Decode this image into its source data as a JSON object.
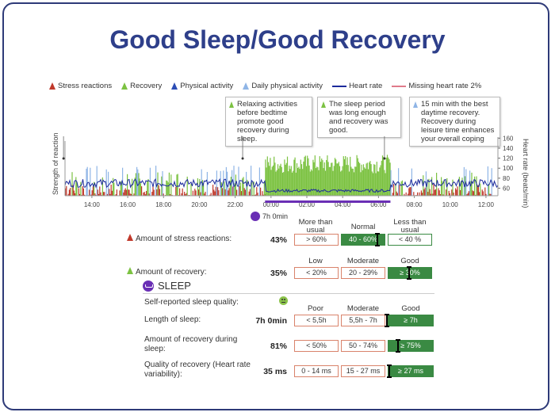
{
  "title": "Good Sleep/Good Recovery",
  "legend": [
    {
      "label": "Stress reactions",
      "kind": "tri",
      "color": "#c0392b"
    },
    {
      "label": "Recovery",
      "kind": "tri",
      "color": "#7cc242"
    },
    {
      "label": "Physical activity",
      "kind": "tri",
      "color": "#2c4db5"
    },
    {
      "label": "Daily physical activity",
      "kind": "tri",
      "color": "#8fb5e6"
    },
    {
      "label": "Heart rate",
      "kind": "line",
      "color": "#1c2a9c"
    },
    {
      "label": "Missing heart rate 2%",
      "kind": "line",
      "color": "#e07a8a"
    }
  ],
  "callouts": [
    {
      "text": "Relaxing activities before bedtime promote good recovery during sleep.",
      "icon": "recovery-icon"
    },
    {
      "text": "The sleep period was long enough and recovery was good.",
      "icon": "recovery-icon"
    },
    {
      "text": "15 min with the best daytime recovery. Recovery during leisure time enhances your overall coping",
      "icon": "daily-activity-icon"
    }
  ],
  "chart_data": {
    "type": "bar",
    "ylabel_left": "Strength of reaction",
    "ylabel_right": "Heart rate (beats/min)",
    "x_ticks": [
      "14:00",
      "16:00",
      "18:00",
      "20:00",
      "22:00",
      "00:00",
      "02:00",
      "04:00",
      "06:00",
      "08:00",
      "10:00",
      "12:00"
    ],
    "hr_ticks": [
      160,
      140,
      120,
      100,
      80,
      60
    ],
    "hr_range": [
      45,
      170
    ],
    "sleep_label": "7h 0min",
    "sleep_period": [
      "23:40",
      "06:40"
    ],
    "x_range": [
      "12:30",
      "12:40 (+1 day)"
    ],
    "callout_markers": [
      "22:25",
      "06:20",
      "12:25"
    ],
    "segments": [
      {
        "type": "stress",
        "from": "12:30",
        "to": "23:40",
        "level": 0.35
      },
      {
        "type": "recovery",
        "from": "23:40",
        "to": "06:40",
        "level": 0.75
      },
      {
        "type": "stress",
        "from": "06:40",
        "to": "12:20",
        "level": 0.35
      },
      {
        "type": "recovery",
        "from": "12:20",
        "to": "12:40",
        "level": 0.5
      }
    ],
    "heart_rate_approx": {
      "day": 70,
      "sleep": 55
    }
  },
  "metrics": {
    "stress": {
      "label": "Amount of stress reactions:",
      "value": "43%",
      "headers": [
        "More than usual",
        "Normal",
        "Less than usual"
      ],
      "boxes": [
        "> 60%",
        "40 - 60%",
        "< 40 %"
      ]
    },
    "recovery": {
      "label": "Amount of recovery:",
      "value": "35%",
      "headers": [
        "Low",
        "Moderate",
        "Good"
      ],
      "boxes": [
        "< 20%",
        "20 - 29%",
        "≥ 30%"
      ]
    }
  },
  "sleep": {
    "heading": "SLEEP",
    "quality_label": "Self-reported sleep quality:",
    "headers": [
      "Poor",
      "Moderate",
      "Good"
    ],
    "rows": [
      {
        "label": "Length of sleep:",
        "value": "7h 0min",
        "boxes": [
          "< 5,5h",
          "5,5h - 7h",
          "≥ 7h"
        ]
      },
      {
        "label": "Amount of recovery during sleep:",
        "value": "81%",
        "boxes": [
          "< 50%",
          "50 - 74%",
          "≥ 75%"
        ]
      },
      {
        "label": "Quality of recovery (Heart rate variability):",
        "value": "35 ms",
        "boxes": [
          "0 - 14 ms",
          "15 - 27 ms",
          "≥ 27 ms"
        ]
      }
    ]
  }
}
